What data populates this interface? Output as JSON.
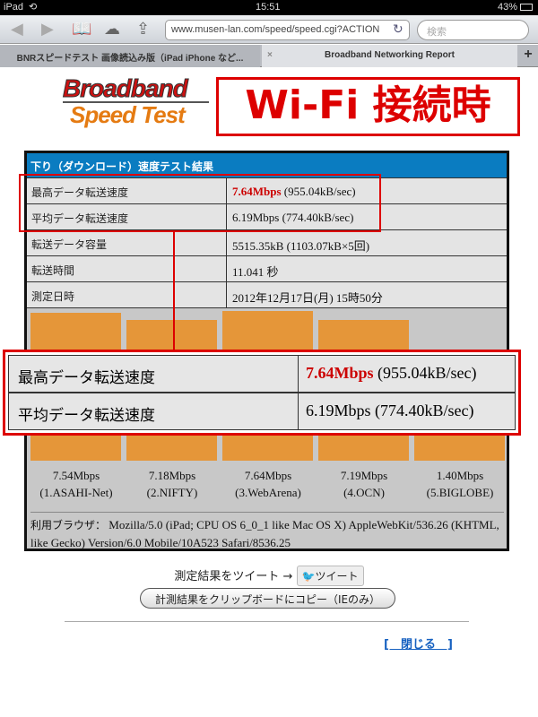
{
  "status": {
    "device": "iPad",
    "time": "15:51",
    "battery": "43%"
  },
  "browser": {
    "url": "www.musen-lan.com/speed/speed.cgi?ACTION",
    "search_placeholder": "検索",
    "tabs": [
      {
        "label": "BNRスピードテスト 画像読込み版（iPad iPhone など..."
      },
      {
        "label": "Broadband Networking Report"
      }
    ],
    "close_tab": "×",
    "new_tab": "+"
  },
  "logo": {
    "line1": "Broadband",
    "line2": "Speed Test"
  },
  "banner": "Wi-Fi 接続時",
  "results": {
    "title": "下り（ダウンロード）速度テスト結果",
    "rows": [
      {
        "label": "最高データ転送速度",
        "value_main": "7.64Mbps",
        "value_rest": " (955.04kB/sec)"
      },
      {
        "label": "平均データ転送速度",
        "value_main": "6.19Mbps",
        "value_rest": " (774.40kB/sec)"
      },
      {
        "label": "転送データ容量",
        "value_main": "",
        "value_rest": "5515.35kB (1103.07kB×5回)"
      },
      {
        "label": "転送時間",
        "value_main": "",
        "value_rest": "11.041 秒"
      },
      {
        "label": "測定日時",
        "value_main": "",
        "value_rest": "2012年12月17日(月) 15時50分"
      }
    ],
    "bar_color": "#e59639",
    "servers": [
      {
        "speed": "7.54Mbps",
        "name": "(1.ASAHI-Net)",
        "value": 7.54
      },
      {
        "speed": "7.18Mbps",
        "name": "(2.NIFTY)",
        "value": 7.18
      },
      {
        "speed": "7.64Mbps",
        "name": "(3.WebArena)",
        "value": 7.64
      },
      {
        "speed": "7.19Mbps",
        "name": "(4.OCN)",
        "value": 7.19
      },
      {
        "speed": "1.40Mbps",
        "name": "(5.BIGLOBE)",
        "value": 1.4
      }
    ],
    "ua_label": "利用ブラウザ：",
    "ua": " Mozilla/5.0 (iPad; CPU OS 6_0_1 like Mac OS X) AppleWebKit/536.26 (KHTML, like Gecko) Version/6.0 Mobile/10A523 Safari/8536.25"
  },
  "tweet": {
    "text": "測定結果をツイート →",
    "button": "ツイート"
  },
  "copy_button": "計測結果をクリップボードにコピー（IEのみ）",
  "close_link": "[　閉じる　]"
}
